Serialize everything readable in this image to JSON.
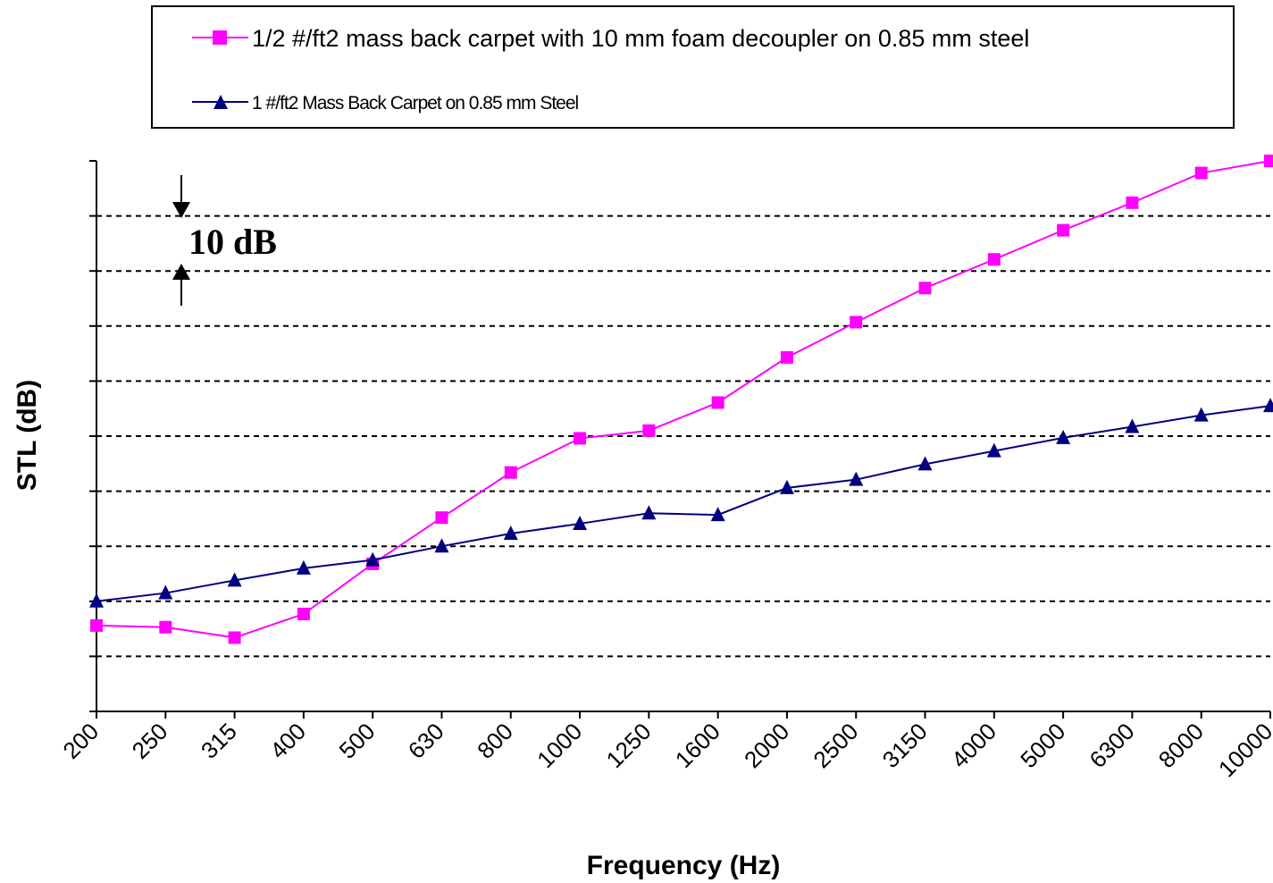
{
  "chart_data": {
    "type": "line",
    "xlabel": "Frequency (Hz)",
    "ylabel": "STL (dB)",
    "categories": [
      "200",
      "250",
      "315",
      "400",
      "500",
      "630",
      "800",
      "1000",
      "1250",
      "1600",
      "2000",
      "2500",
      "3150",
      "4000",
      "5000",
      "6300",
      "8000",
      "10000"
    ],
    "y_gridlines": 10,
    "y_grid_step_db": 10,
    "grid": "horizontal dashed",
    "y_tick_labels_shown": false,
    "legend_placement": "top",
    "annotation": "10 dB",
    "series": [
      {
        "name": "1/2 #/ft2 mass back carpet with 10 mm foam decoupler on 0.85 mm steel",
        "color": "#ff00ff",
        "marker": "square",
        "values": [
          15.6,
          15.3,
          13.4,
          17.7,
          26.8,
          35.2,
          43.4,
          49.6,
          51.0,
          56.1,
          64.3,
          70.7,
          76.9,
          82.1,
          87.4,
          92.4,
          97.8,
          100.0
        ]
      },
      {
        "name": "1 #/ft2 Mass Back Carpet on 0.85 mm Steel",
        "color": "#000080",
        "marker": "triangle",
        "values": [
          20.0,
          21.5,
          23.8,
          26.0,
          27.5,
          30.0,
          32.3,
          34.1,
          36.0,
          35.7,
          40.6,
          42.1,
          44.9,
          47.3,
          49.7,
          51.7,
          53.8,
          55.5
        ]
      }
    ]
  }
}
